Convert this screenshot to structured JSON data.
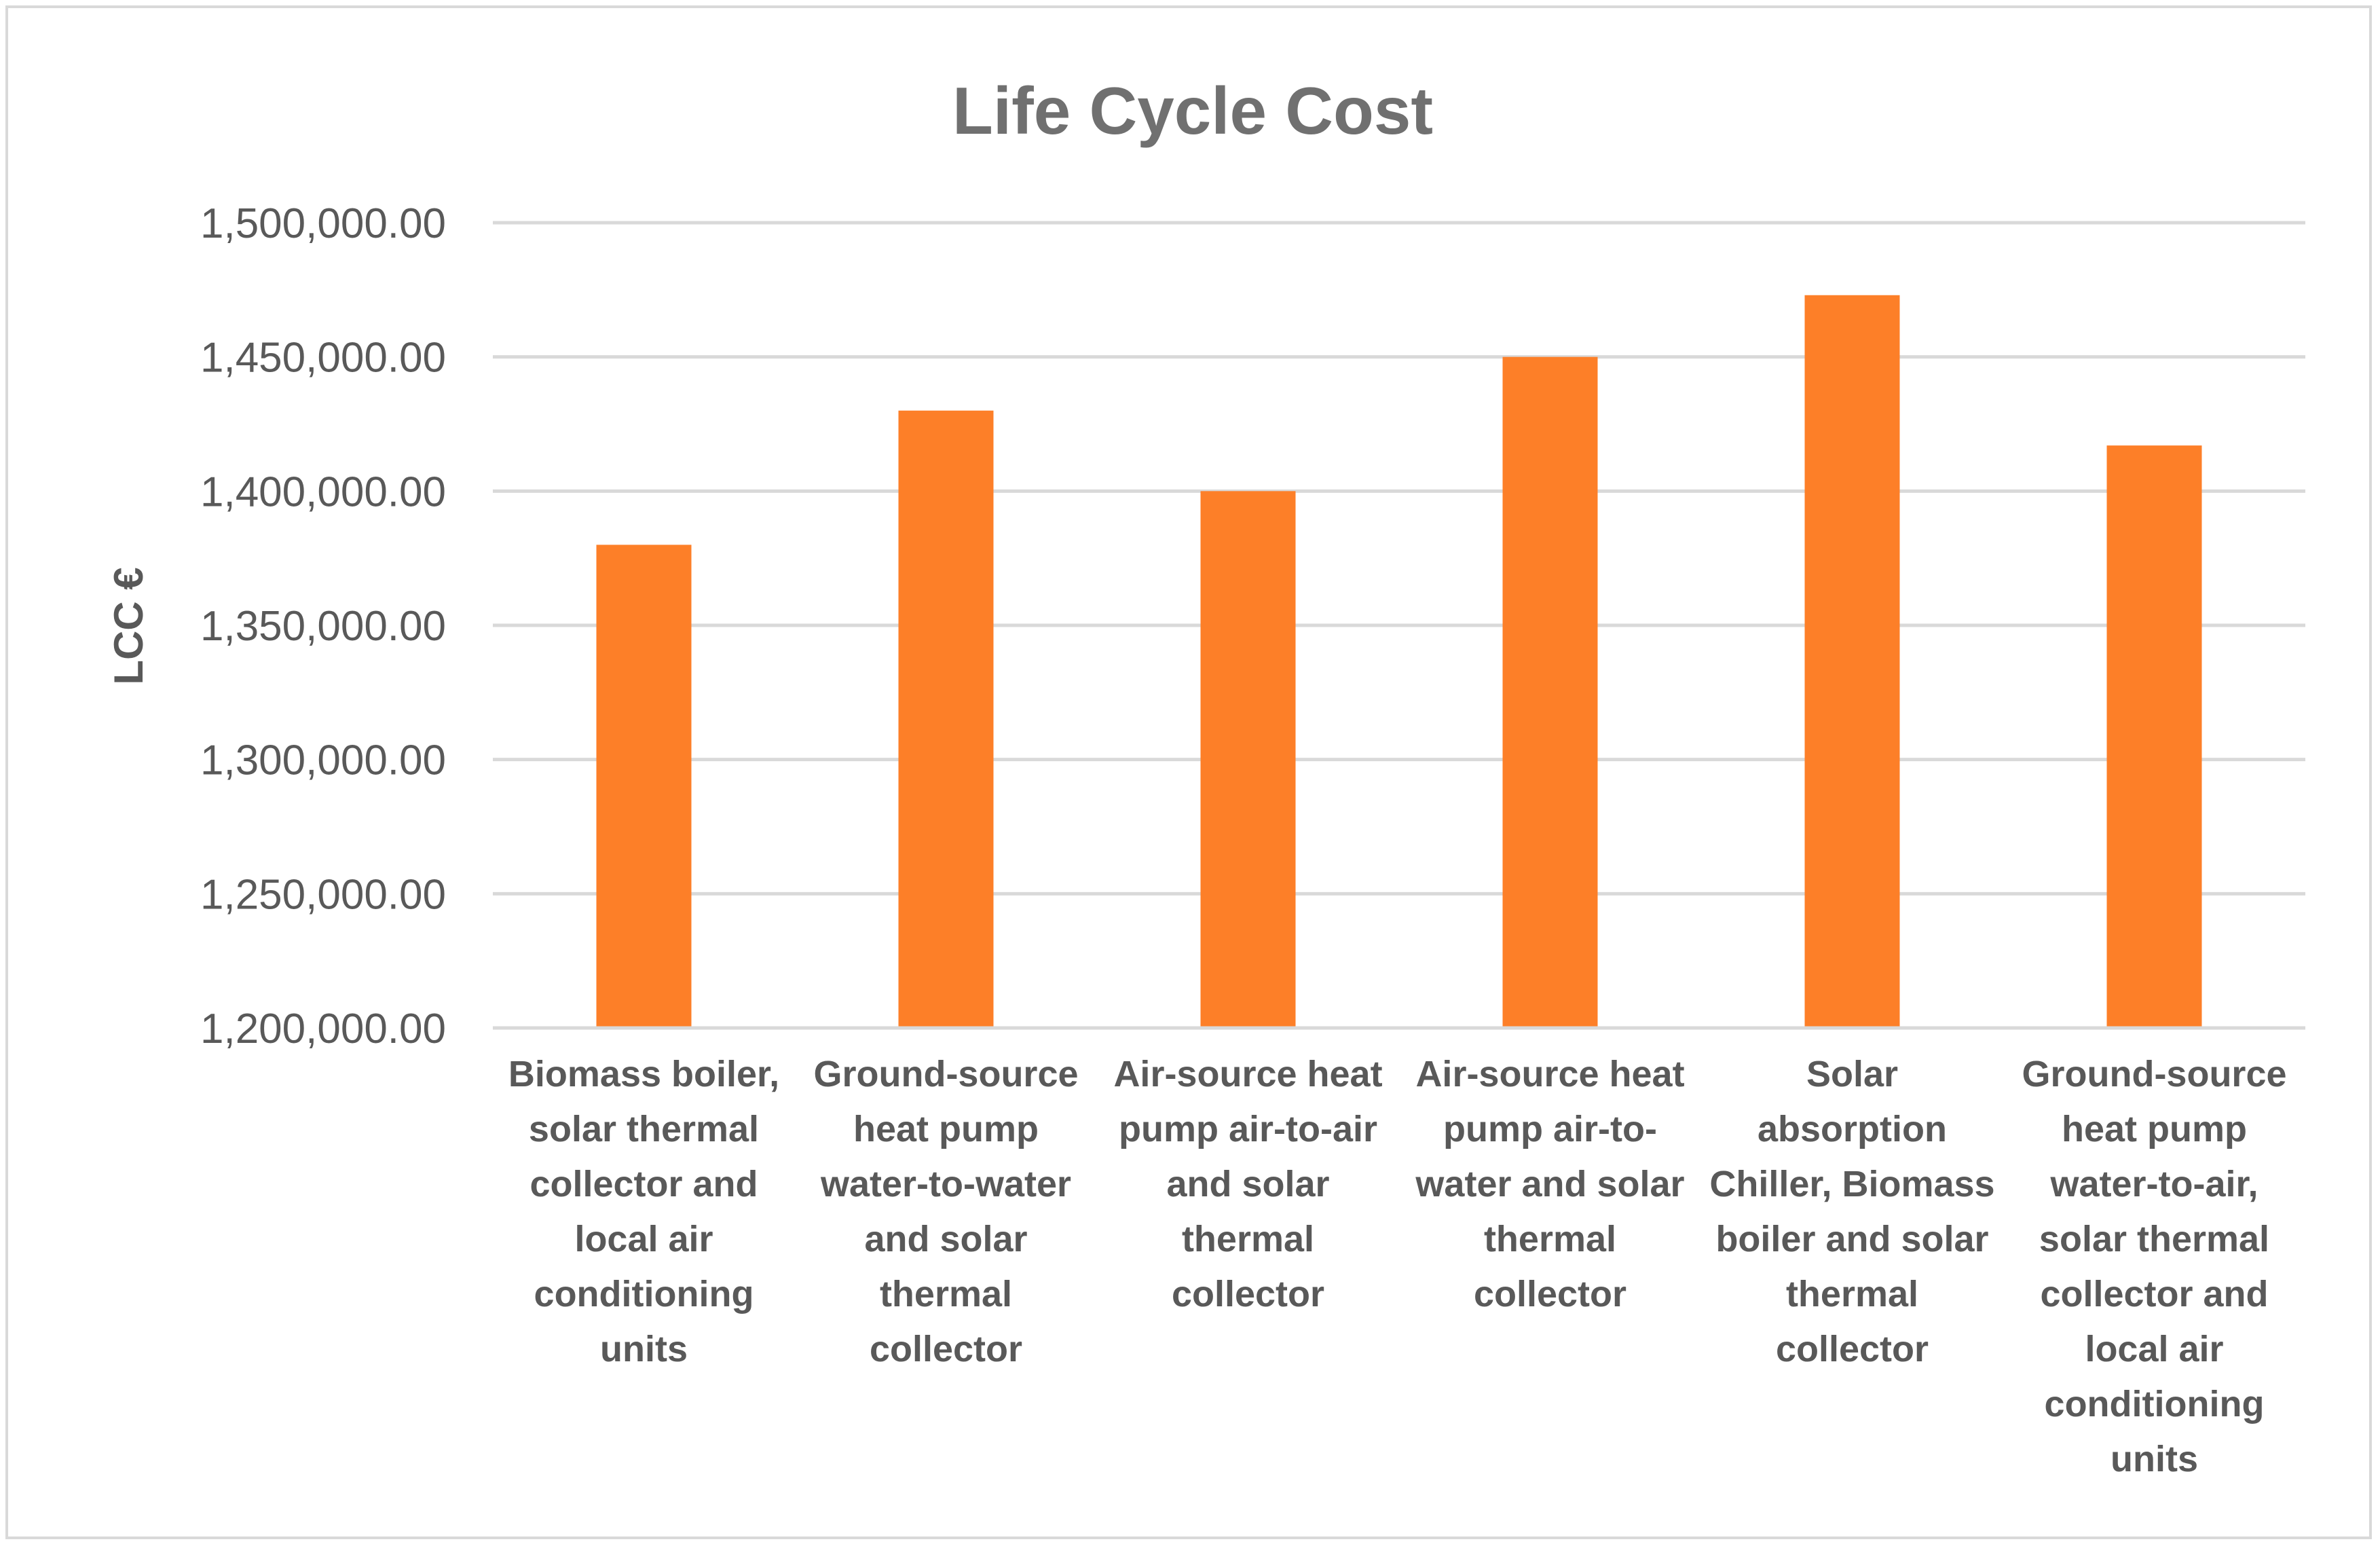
{
  "chart_data": {
    "type": "bar",
    "title": "Life Cycle Cost",
    "xlabel": "",
    "ylabel": "LCC €",
    "ylim": [
      1200000,
      1500000
    ],
    "yticks": [
      1200000,
      1250000,
      1300000,
      1350000,
      1400000,
      1450000,
      1500000
    ],
    "ytick_labels": [
      "1,200,000.00",
      "1,250,000.00",
      "1,300,000.00",
      "1,350,000.00",
      "1,400,000.00",
      "1,450,000.00",
      "1,500,000.00"
    ],
    "grid": true,
    "bar_color": "#fd7f28",
    "categories": [
      "Biomass boiler, solar thermal collector and local air conditioning units",
      "Ground-source heat pump water-to-water and solar thermal collector",
      "Air-source heat pump air-to-air and solar thermal collector",
      "Air-source heat pump air-to-water and solar thermal collector",
      "Solar absorption Chiller, Biomass boiler and solar thermal collector",
      "Ground-source heat pump water-to-air, solar thermal collector and local air conditioning units"
    ],
    "category_lines": [
      [
        "Biomass boiler,",
        "solar thermal",
        "collector and",
        "local air",
        "conditioning",
        "units"
      ],
      [
        "Ground-source",
        "heat pump",
        "water-to-water",
        "and solar",
        "thermal",
        "collector"
      ],
      [
        "Air-source heat",
        "pump air-to-air",
        "and solar",
        "thermal",
        "collector"
      ],
      [
        "Air-source heat",
        "pump air-to-",
        "water and solar",
        "thermal",
        "collector"
      ],
      [
        "Solar",
        "absorption",
        "Chiller, Biomass",
        "boiler and solar",
        "thermal",
        "collector"
      ],
      [
        "Ground-source",
        "heat pump",
        "water-to-air,",
        "solar thermal",
        "collector and",
        "local air",
        "conditioning",
        "units"
      ]
    ],
    "values": [
      1380000,
      1430000,
      1400000,
      1450000,
      1473000,
      1417000
    ]
  }
}
